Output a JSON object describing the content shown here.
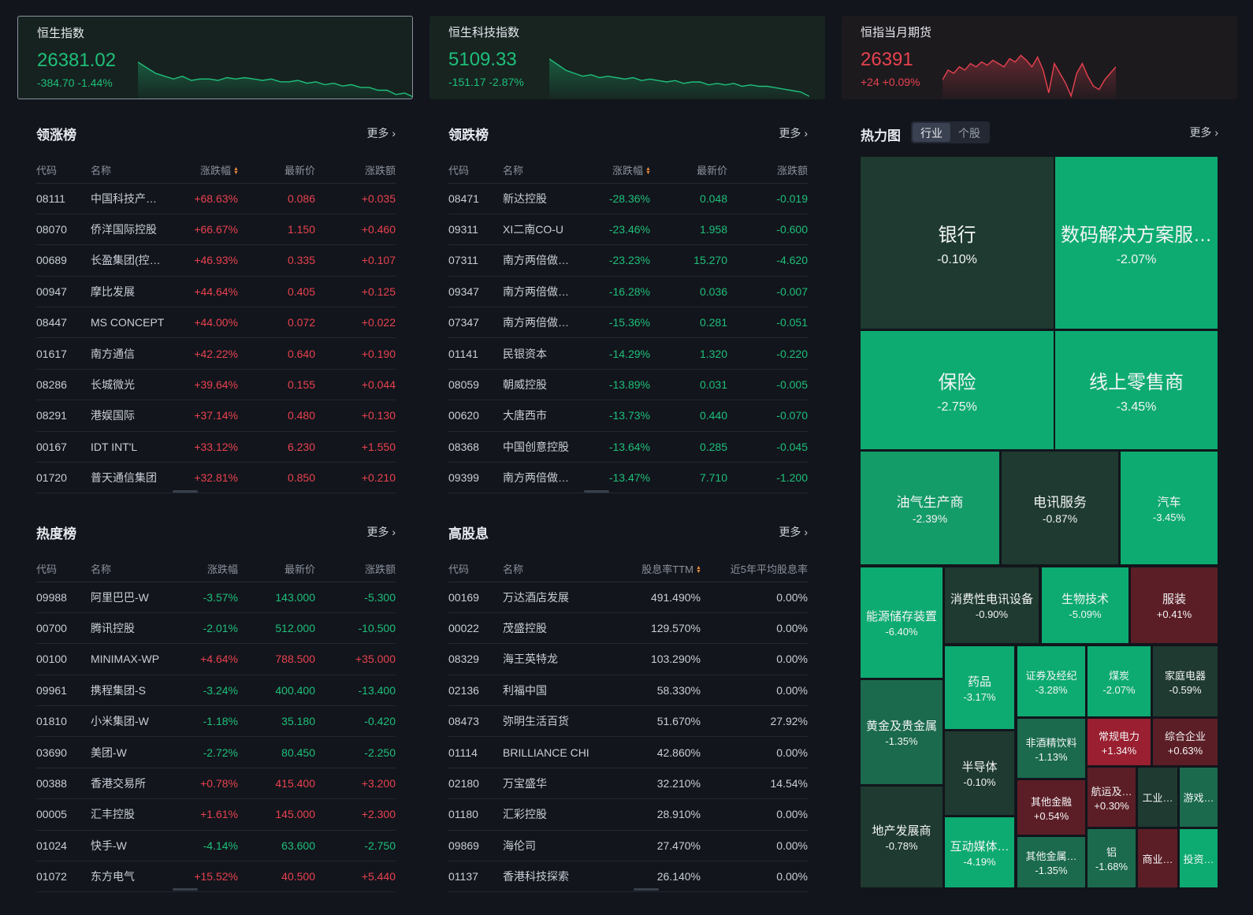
{
  "indices": [
    {
      "name": "恒生指数",
      "price": "26381.02",
      "change": "-384.70 -1.44%",
      "dir": "down",
      "color": "#1fbf7a",
      "spark": [
        10,
        14,
        18,
        20,
        22,
        20,
        23,
        22,
        22,
        23,
        21,
        22,
        21,
        22,
        23,
        22,
        24,
        24,
        23,
        25,
        24,
        26,
        25,
        27,
        26,
        28,
        28,
        30,
        30,
        33,
        32,
        35
      ]
    },
    {
      "name": "恒生科技指数",
      "price": "5109.33",
      "change": "-151.17 -2.87%",
      "dir": "down",
      "color": "#1fbf7a",
      "spark": [
        8,
        12,
        16,
        18,
        20,
        19,
        21,
        20,
        21,
        22,
        21,
        23,
        22,
        23,
        24,
        23,
        25,
        24,
        24,
        26,
        25,
        26,
        25,
        27,
        26,
        27,
        27,
        28,
        29,
        30,
        31,
        34
      ]
    },
    {
      "name": "恒指当月期货",
      "price": "26391",
      "change": "+24 +0.09%",
      "dir": "up",
      "color": "#e8424f",
      "spark": [
        20,
        14,
        16,
        12,
        14,
        10,
        12,
        9,
        11,
        8,
        10,
        12,
        7,
        9,
        5,
        8,
        12,
        6,
        14,
        28,
        10,
        16,
        22,
        30,
        16,
        10,
        18,
        24,
        26,
        20,
        16,
        12
      ]
    }
  ],
  "gainers": {
    "title": "领涨榜",
    "more": "更多 ›",
    "headers": [
      "代码",
      "名称",
      "涨跌幅",
      "最新价",
      "涨跌额"
    ],
    "rows": [
      [
        "08111",
        "中国科技产…",
        "+68.63%",
        "0.086",
        "+0.035"
      ],
      [
        "08070",
        "侨洋国际控股",
        "+66.67%",
        "1.150",
        "+0.460"
      ],
      [
        "00689",
        "长盈集团(控…",
        "+46.93%",
        "0.335",
        "+0.107"
      ],
      [
        "00947",
        "摩比发展",
        "+44.64%",
        "0.405",
        "+0.125"
      ],
      [
        "08447",
        "MS CONCEPT",
        "+44.00%",
        "0.072",
        "+0.022"
      ],
      [
        "01617",
        "南方通信",
        "+42.22%",
        "0.640",
        "+0.190"
      ],
      [
        "08286",
        "长城微光",
        "+39.64%",
        "0.155",
        "+0.044"
      ],
      [
        "08291",
        "港娱国际",
        "+37.14%",
        "0.480",
        "+0.130"
      ],
      [
        "00167",
        "IDT INT'L",
        "+33.12%",
        "6.230",
        "+1.550"
      ],
      [
        "01720",
        "普天通信集团",
        "+32.81%",
        "0.850",
        "+0.210"
      ]
    ]
  },
  "losers": {
    "title": "领跌榜",
    "more": "更多 ›",
    "headers": [
      "代码",
      "名称",
      "涨跌幅",
      "最新价",
      "涨跌额"
    ],
    "rows": [
      [
        "08471",
        "新达控股",
        "-28.36%",
        "0.048",
        "-0.019"
      ],
      [
        "09311",
        "XI二南CO-U",
        "-23.46%",
        "1.958",
        "-0.600"
      ],
      [
        "07311",
        "南方两倍做…",
        "-23.23%",
        "15.270",
        "-4.620"
      ],
      [
        "09347",
        "南方两倍做…",
        "-16.28%",
        "0.036",
        "-0.007"
      ],
      [
        "07347",
        "南方两倍做…",
        "-15.36%",
        "0.281",
        "-0.051"
      ],
      [
        "01141",
        "民银资本",
        "-14.29%",
        "1.320",
        "-0.220"
      ],
      [
        "08059",
        "朝威控股",
        "-13.89%",
        "0.031",
        "-0.005"
      ],
      [
        "00620",
        "大唐西市",
        "-13.73%",
        "0.440",
        "-0.070"
      ],
      [
        "08368",
        "中国创意控股",
        "-13.64%",
        "0.285",
        "-0.045"
      ],
      [
        "09399",
        "南方两倍做…",
        "-13.47%",
        "7.710",
        "-1.200"
      ]
    ]
  },
  "hot": {
    "title": "热度榜",
    "more": "更多 ›",
    "headers": [
      "代码",
      "名称",
      "涨跌幅",
      "最新价",
      "涨跌额"
    ],
    "rows": [
      [
        "09988",
        "阿里巴巴-W",
        "-3.57%",
        "143.000",
        "-5.300",
        "down"
      ],
      [
        "00700",
        "腾讯控股",
        "-2.01%",
        "512.000",
        "-10.500",
        "down"
      ],
      [
        "00100",
        "MINIMAX-WP",
        "+4.64%",
        "788.500",
        "+35.000",
        "up"
      ],
      [
        "09961",
        "携程集团-S",
        "-3.24%",
        "400.400",
        "-13.400",
        "down"
      ],
      [
        "01810",
        "小米集团-W",
        "-1.18%",
        "35.180",
        "-0.420",
        "down"
      ],
      [
        "03690",
        "美团-W",
        "-2.72%",
        "80.450",
        "-2.250",
        "down"
      ],
      [
        "00388",
        "香港交易所",
        "+0.78%",
        "415.400",
        "+3.200",
        "up"
      ],
      [
        "00005",
        "汇丰控股",
        "+1.61%",
        "145.000",
        "+2.300",
        "up"
      ],
      [
        "01024",
        "快手-W",
        "-4.14%",
        "63.600",
        "-2.750",
        "down"
      ],
      [
        "01072",
        "东方电气",
        "+15.52%",
        "40.500",
        "+5.440",
        "up"
      ]
    ]
  },
  "dividend": {
    "title": "高股息",
    "more": "更多 ›",
    "headers": [
      "代码",
      "名称",
      "股息率TTM",
      "近5年平均股息率"
    ],
    "rows": [
      [
        "00169",
        "万达酒店发展",
        "491.490%",
        "0.00%"
      ],
      [
        "00022",
        "茂盛控股",
        "129.570%",
        "0.00%"
      ],
      [
        "08329",
        "海王英特龙",
        "103.290%",
        "0.00%"
      ],
      [
        "02136",
        "利福中国",
        "58.330%",
        "0.00%"
      ],
      [
        "08473",
        "弥明生活百货",
        "51.670%",
        "27.92%"
      ],
      [
        "01114",
        "BRILLIANCE CHI",
        "42.860%",
        "0.00%"
      ],
      [
        "02180",
        "万宝盛华",
        "32.210%",
        "14.54%"
      ],
      [
        "01180",
        "汇彩控股",
        "28.910%",
        "0.00%"
      ],
      [
        "09869",
        "海伦司",
        "27.470%",
        "0.00%"
      ],
      [
        "01137",
        "香港科技探索",
        "26.140%",
        "0.00%"
      ]
    ]
  },
  "heatmap": {
    "title": "热力图",
    "tab_industry": "行业",
    "tab_stock": "个股",
    "more": "更多 ›",
    "tiles": [
      {
        "name": "银行",
        "change": "-0.10%",
        "cls": "g4",
        "size": "xl"
      },
      {
        "name": "数码解决方案服…",
        "change": "-2.07%",
        "cls": "g1",
        "size": "xl"
      },
      {
        "name": "保险",
        "change": "-2.75%",
        "cls": "g1",
        "size": "xl"
      },
      {
        "name": "线上零售商",
        "change": "-3.45%",
        "cls": "g1",
        "size": "xl"
      },
      {
        "name": "油气生产商",
        "change": "-2.39%",
        "cls": "g2",
        "size": "m"
      },
      {
        "name": "电讯服务",
        "change": "-0.87%",
        "cls": "g4",
        "size": "m"
      },
      {
        "name": "汽车",
        "change": "-3.45%",
        "cls": "g1",
        "size": "s"
      },
      {
        "name": "能源储存装置",
        "change": "-6.40%",
        "cls": "g1",
        "size": "s"
      },
      {
        "name": "消费性电讯设备",
        "change": "-0.90%",
        "cls": "g4",
        "size": "s"
      },
      {
        "name": "生物技术",
        "change": "-5.09%",
        "cls": "g1",
        "size": "s"
      },
      {
        "name": "服装",
        "change": "+0.41%",
        "cls": "r1",
        "size": "s"
      },
      {
        "name": "黄金及贵金属",
        "change": "-1.35%",
        "cls": "g3",
        "size": "s"
      },
      {
        "name": "药品",
        "change": "-3.17%",
        "cls": "g1",
        "size": "s"
      },
      {
        "name": "证券及经纪",
        "change": "-3.28%",
        "cls": "g1",
        "size": "xs"
      },
      {
        "name": "煤炭",
        "change": "-2.07%",
        "cls": "g1",
        "size": "xs"
      },
      {
        "name": "家庭电器",
        "change": "-0.59%",
        "cls": "g4",
        "size": "xs"
      },
      {
        "name": "非酒精饮料",
        "change": "-1.13%",
        "cls": "g3",
        "size": "xs"
      },
      {
        "name": "常规电力",
        "change": "+1.34%",
        "cls": "r2",
        "size": "xs"
      },
      {
        "name": "综合企业",
        "change": "+0.63%",
        "cls": "r1",
        "size": "xs"
      },
      {
        "name": "半导体",
        "change": "-0.10%",
        "cls": "g4",
        "size": "s"
      },
      {
        "name": "其他金融",
        "change": "+0.54%",
        "cls": "r1",
        "size": "xs"
      },
      {
        "name": "航运及…",
        "change": "+0.30%",
        "cls": "r1",
        "size": "xs"
      },
      {
        "name": "工业…",
        "change": "",
        "cls": "g4",
        "size": "xs"
      },
      {
        "name": "游戏…",
        "change": "",
        "cls": "g3",
        "size": "xs"
      },
      {
        "name": "地产发展商",
        "change": "-0.78%",
        "cls": "g4",
        "size": "s"
      },
      {
        "name": "互动媒体…",
        "change": "-4.19%",
        "cls": "g1",
        "size": "s"
      },
      {
        "name": "其他金属…",
        "change": "-1.35%",
        "cls": "g3",
        "size": "xs"
      },
      {
        "name": "铝",
        "change": "-1.68%",
        "cls": "g3",
        "size": "xs"
      },
      {
        "name": "商业…",
        "change": "",
        "cls": "r1",
        "size": "xs"
      },
      {
        "name": "投资…",
        "change": "",
        "cls": "g1",
        "size": "xs"
      }
    ]
  }
}
